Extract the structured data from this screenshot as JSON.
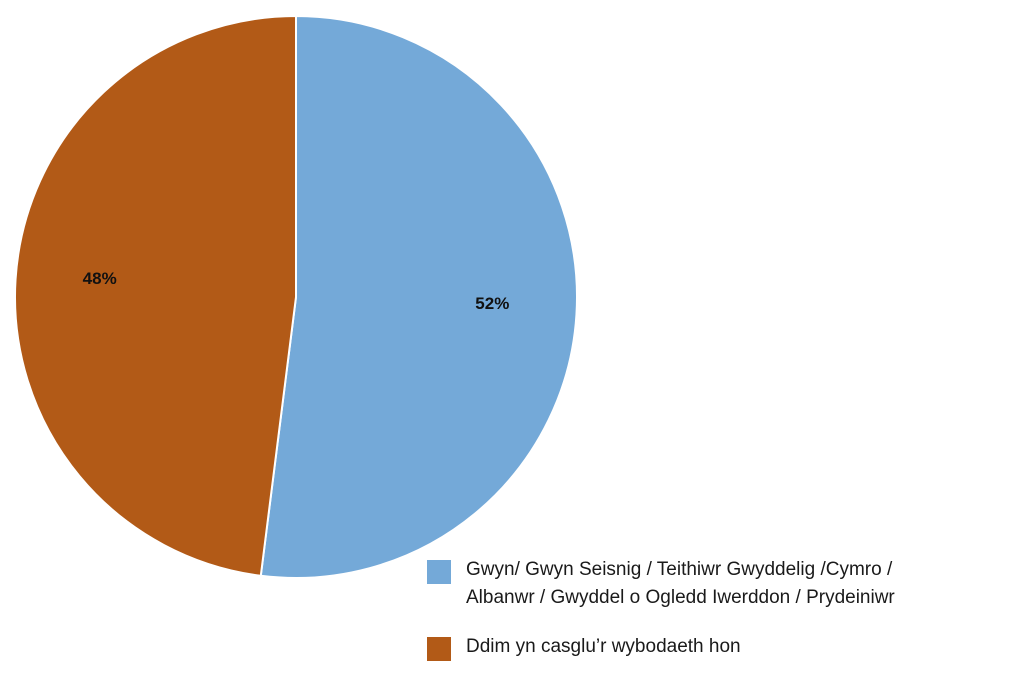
{
  "chart_data": {
    "type": "pie",
    "slices": [
      {
        "label": "Gwyn/ Gwyn Seisnig / Teithiwr Gwyddelig /Cymro /\nAlbanwr / Gwyddel o Ogledd Iwerddon / Prydeiniwr",
        "value": 52,
        "display": "52%",
        "color": "#74A9D8"
      },
      {
        "label": "Ddim yn casglu’r wybodaeth hon",
        "value": 48,
        "display": "48%",
        "color": "#B25A17"
      }
    ],
    "start_angle_deg": 0,
    "direction": "clockwise",
    "slice_border_color": "#ffffff",
    "legend_position": "bottom-right"
  }
}
